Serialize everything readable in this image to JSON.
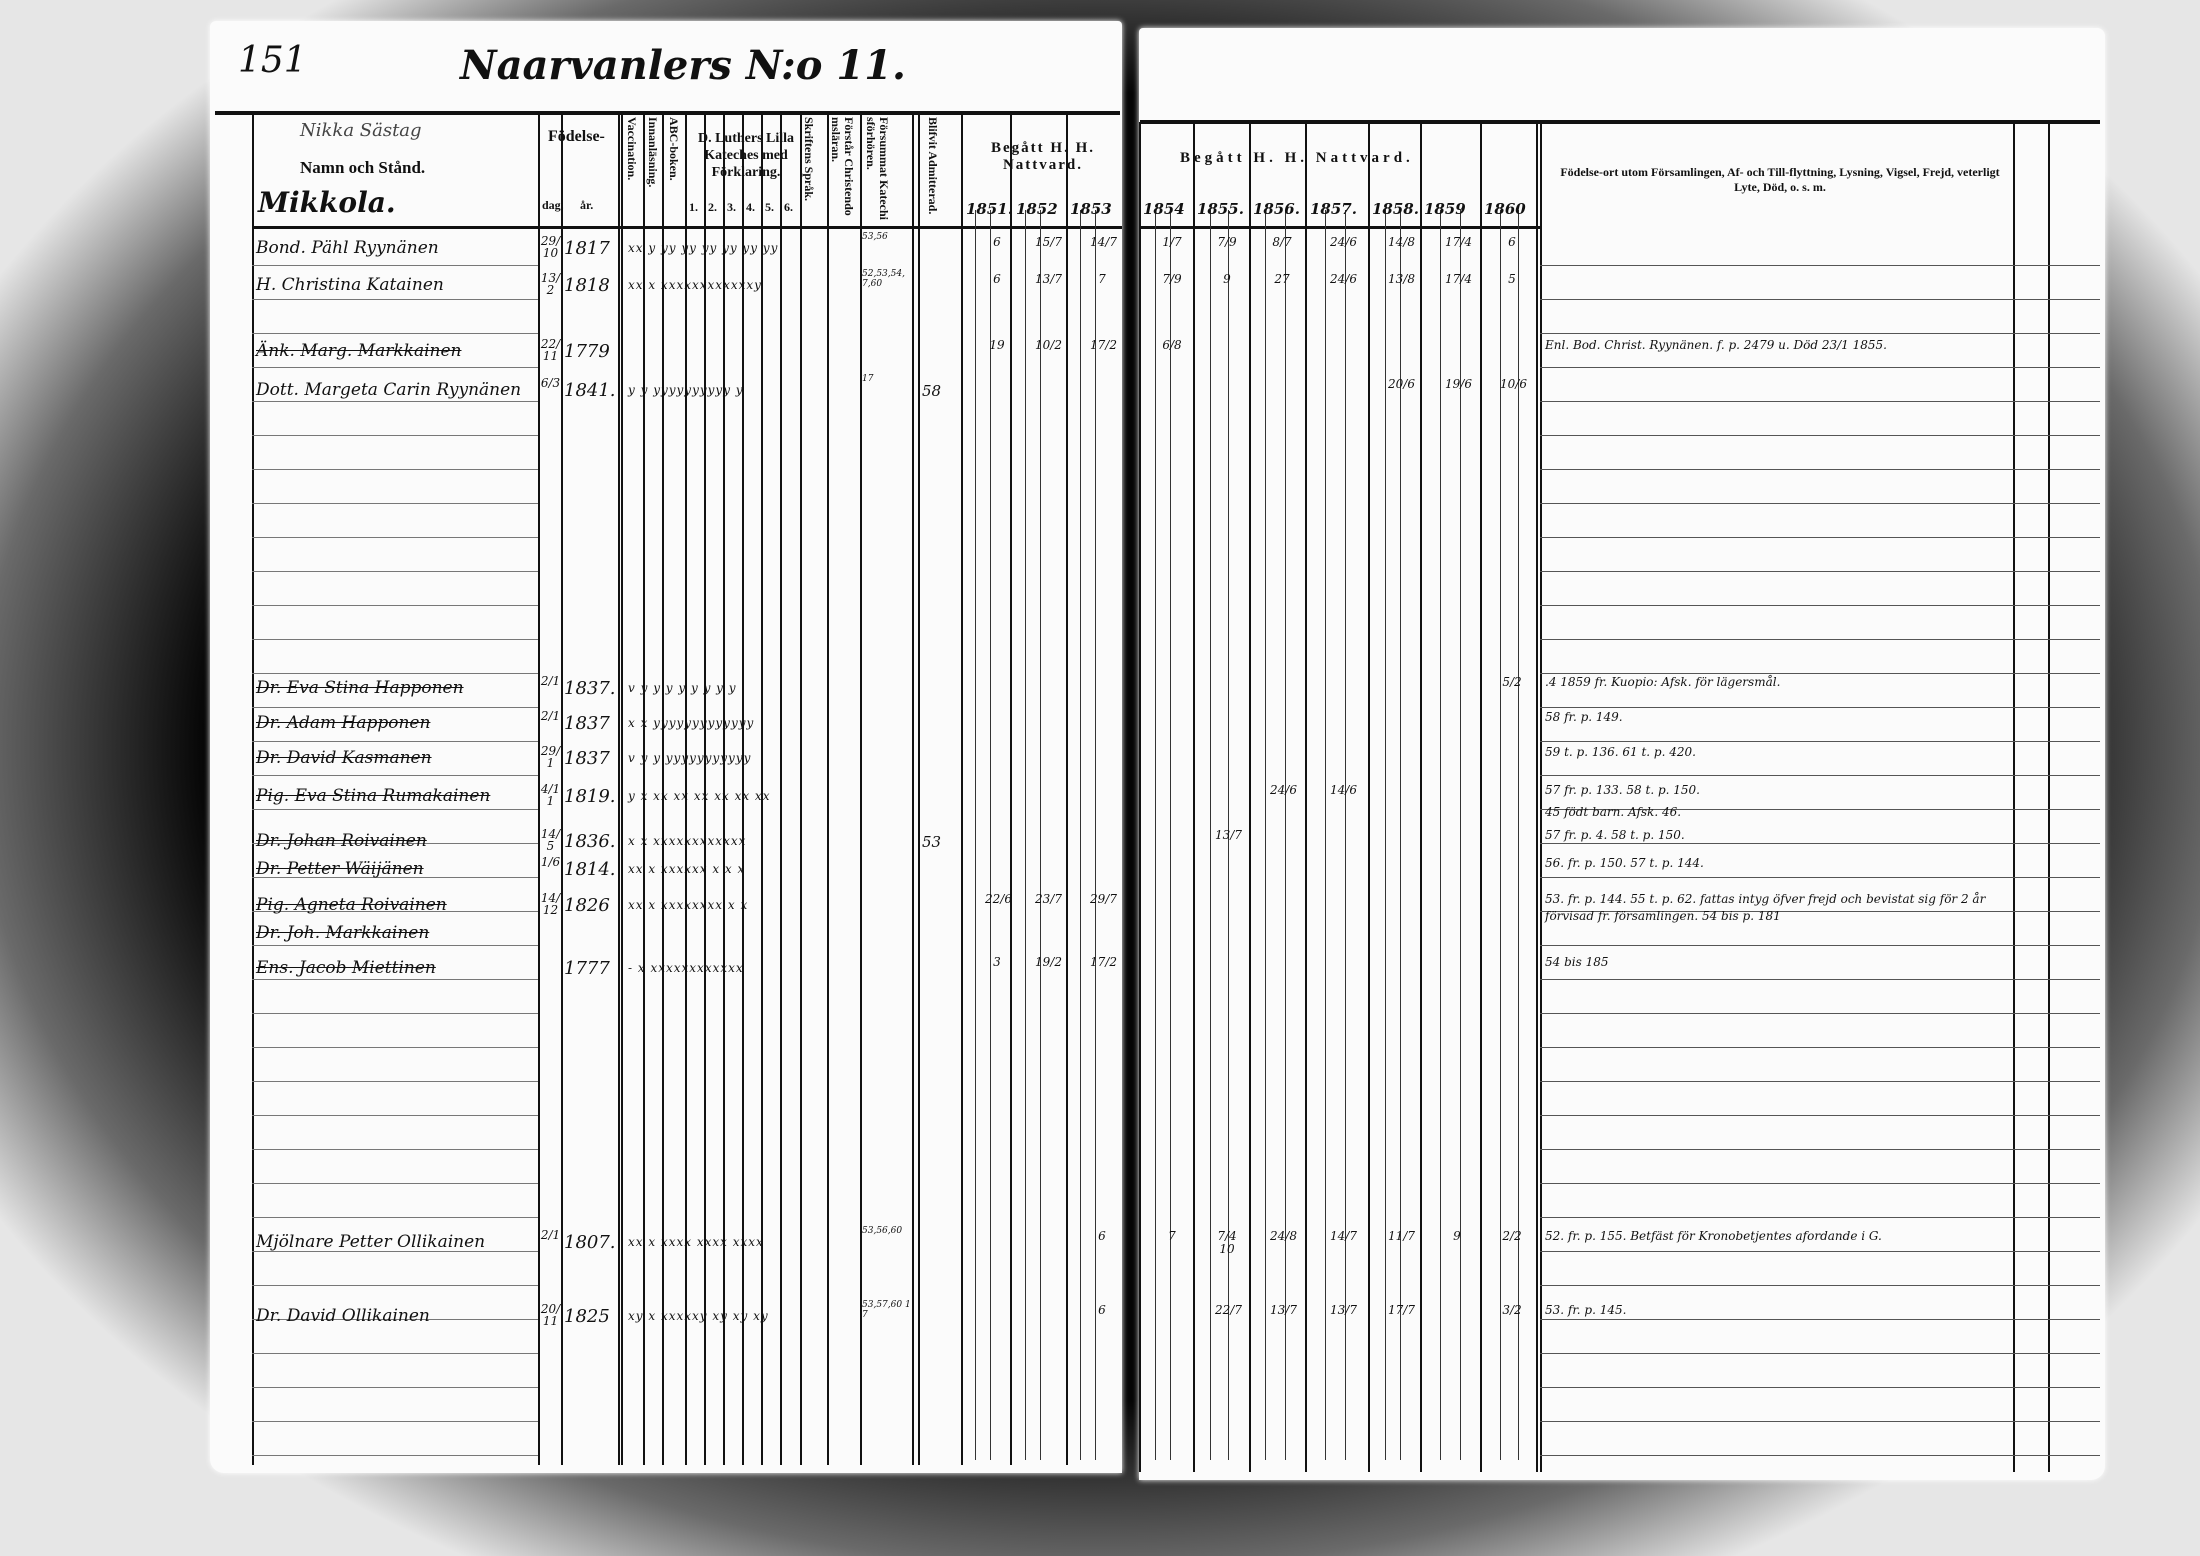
{
  "header": {
    "page_number": "151",
    "title": "Naarvanlers N:o 11.",
    "village_note": "Nikka Sästag",
    "village": "Mikkola."
  },
  "columns": {
    "name": "Namn och Stånd.",
    "birth": "Födelse-",
    "birth_day": "dag.",
    "birth_year": "år.",
    "vaccination": "Vaccination.",
    "reading": "Innanläsning.",
    "abc": "ABC-boken.",
    "catechism": "D. Luthers Lilla Kateches med Förklaring.",
    "catechism_parts": [
      "1.",
      "2.",
      "3.",
      "4.",
      "5.",
      "6."
    ],
    "scripture": "Skriftens Språk.",
    "understands": "Förstår Christendomsläran.",
    "missed": "Försummat Katechisförhören.",
    "admitted": "Blifvit Admitterad.",
    "communion_left": "Begått H. H. Nattvard.",
    "communion_right": "Begått H. H. Nattvard.",
    "years": [
      "1851.",
      "1852",
      "1853",
      "1854",
      "1855.",
      "1856.",
      "1857.",
      "1858.",
      "1859",
      "1860"
    ],
    "remarks": "Födelse-ort utom Församlingen, Af- och Till-flyttning, Lysning, Vigsel, Frejd, veterligt Lyte, Död, o. s. m."
  },
  "rows": [
    {
      "name": "Bond. Pähl Ryynänen",
      "day": "29/10",
      "year": "1817",
      "marks": "xx y yy yy yy yy yy yy",
      "missed": "53,56",
      "admitted": "",
      "communion": {
        "1851": "6",
        "1852": "15/7",
        "1853": "14/7",
        "1854": "1/7",
        "1855": "7/9",
        "1856": "8/7",
        "1857": "24/6",
        "1858": "14/8",
        "1859": "17/4",
        "1860": "6"
      },
      "remark": "",
      "struck": false
    },
    {
      "name": "H. Christina Katainen",
      "day": "13/2",
      "year": "1818",
      "marks": "xx x xxxxxxxxxxxxy",
      "missed": "52,53,54,7,60",
      "admitted": "",
      "communion": {
        "1851": "6",
        "1852": "13/7",
        "1853": "7",
        "1854": "7/9",
        "1855": "9",
        "1856": "27",
        "1857": "24/6",
        "1858": "13/8",
        "1859": "17/4",
        "1860": "5"
      },
      "remark": "",
      "struck": false
    },
    {
      "name": "Änk. Marg. Markkainen",
      "day": "22/11",
      "year": "1779",
      "marks": "",
      "missed": "",
      "admitted": "",
      "communion": {
        "1851": "19",
        "1852": "10/2",
        "1853": "17/2",
        "1854": "6/8"
      },
      "remark": "Enl. Bod. Christ. Ryynänen. f. p. 2479 u. Död 23/1 1855.",
      "struck": true
    },
    {
      "name": "Dott. Margeta Carin Ryynänen",
      "day": "6/3",
      "year": "1841.",
      "marks": "y y yyyyyyyyyy y",
      "missed": "17",
      "admitted": "58",
      "communion": {
        "1858": "20/6",
        "1859": "19/6",
        "1860": "10/6"
      },
      "remark": "",
      "struck": false
    },
    {
      "name": "Dr. Eva Stina Happonen",
      "day": "2/1",
      "year": "1837.",
      "marks": "v y y y y y y y y",
      "missed": "",
      "admitted": "",
      "communion": {
        "1860": "5/2"
      },
      "remark": ".4 1859 fr. Kuopio: Afsk. för lägersmål.",
      "struck": true
    },
    {
      "name": "Dr. Adam Happonen",
      "day": "2/1",
      "year": "1837",
      "marks": "x x yyyyyyyyyyyyy",
      "missed": "",
      "admitted": "",
      "communion": {},
      "remark": "58 fr. p. 149.",
      "struck": true
    },
    {
      "name": "Dr. David Kasmanen",
      "day": "29/1",
      "year": "1837",
      "marks": "v y y yyyyyyyyyyy",
      "missed": "",
      "admitted": "",
      "communion": {},
      "remark": "59 t. p. 136. 61 t. p. 420.",
      "struck": true
    },
    {
      "name": "Pig. Eva Stina Rumakainen",
      "day": "4/11",
      "year": "1819.",
      "marks": "y x xx xx xx xx xx xx",
      "missed": "",
      "admitted": "",
      "communion": {
        "1856": "24/6",
        "1857": "14/6"
      },
      "remark": "57 fr. p. 133. 58 t. p. 150.",
      "struck": true
    },
    {
      "name": "",
      "day": "",
      "year": "",
      "marks": "",
      "missed": "",
      "admitted": "",
      "communion": {},
      "remark": "45 födt barn. Afsk. 46.",
      "struck": false
    },
    {
      "name": "Dr. Johan Roivainen",
      "day": "14/5",
      "year": "1836.",
      "marks": "x x xxxxxxxxxxxx",
      "missed": "",
      "admitted": "53",
      "communion": {
        "1855": "13/7"
      },
      "remark": "57 fr. p. 4. 58 t. p. 150.",
      "struck": true
    },
    {
      "name": "Dr. Petter Wäijänen",
      "day": "1/6",
      "year": "1814.",
      "marks": "xx x xxxxxx x x x",
      "missed": "",
      "admitted": "",
      "communion": {},
      "remark": "56. fr. p. 150. 57 t. p. 144.",
      "struck": true
    },
    {
      "name": "Pig. Agneta Roivainen",
      "day": "14/12",
      "year": "1826",
      "marks": "xx x xxxxxxxx x x",
      "missed": "",
      "admitted": "",
      "communion": {
        "1851": "22/6",
        "1852": "23/7",
        "1853": "29/7"
      },
      "remark": "53. fr. p. 144. 55 t. p. 62. fattas intyg öfver frejd och bevistat sig för 2 år förvisad fr. församlingen. 54 bis p. 181",
      "struck": true
    },
    {
      "name": "Dr. Joh. Markkainen",
      "day": "",
      "year": "",
      "marks": "",
      "missed": "",
      "admitted": "",
      "communion": {},
      "remark": "",
      "struck": true
    },
    {
      "name": "Ens. Jacob Miettinen",
      "day": "",
      "year": "1777",
      "marks": "- x xxxxxxxxxxxx",
      "missed": "",
      "admitted": "",
      "communion": {
        "1851": "3",
        "1852": "19/2",
        "1853": "17/2"
      },
      "remark": "54 bis 185",
      "struck": true
    },
    {
      "name": "Mjölnare Petter Ollikainen",
      "day": "2/1",
      "year": "1807.",
      "marks": "xx x xxxx xxxx xxxx",
      "missed": "53,56,60",
      "admitted": "",
      "communion": {
        "1853": "6",
        "1854": "7",
        "1855": "7/4 10",
        "1856": "24/8",
        "1857": "14/7",
        "1858": "11/7",
        "1859": "9",
        "1860": "2/2"
      },
      "remark": "52. fr. p. 155. Betfäst för Kronobetjentes afordande i G.",
      "struck": false
    },
    {
      "name": "Dr. David Ollikainen",
      "day": "20/11",
      "year": "1825",
      "marks": "xy x xxxxxy xy xy xy",
      "missed": "53,57,60 17",
      "admitted": "",
      "communion": {
        "1853": "6",
        "1855": "22/7",
        "1856": "13/7",
        "1857": "13/7",
        "1858": "17/7",
        "1860": "3/2"
      },
      "remark": "53. fr. p. 145.",
      "struck": false
    }
  ]
}
